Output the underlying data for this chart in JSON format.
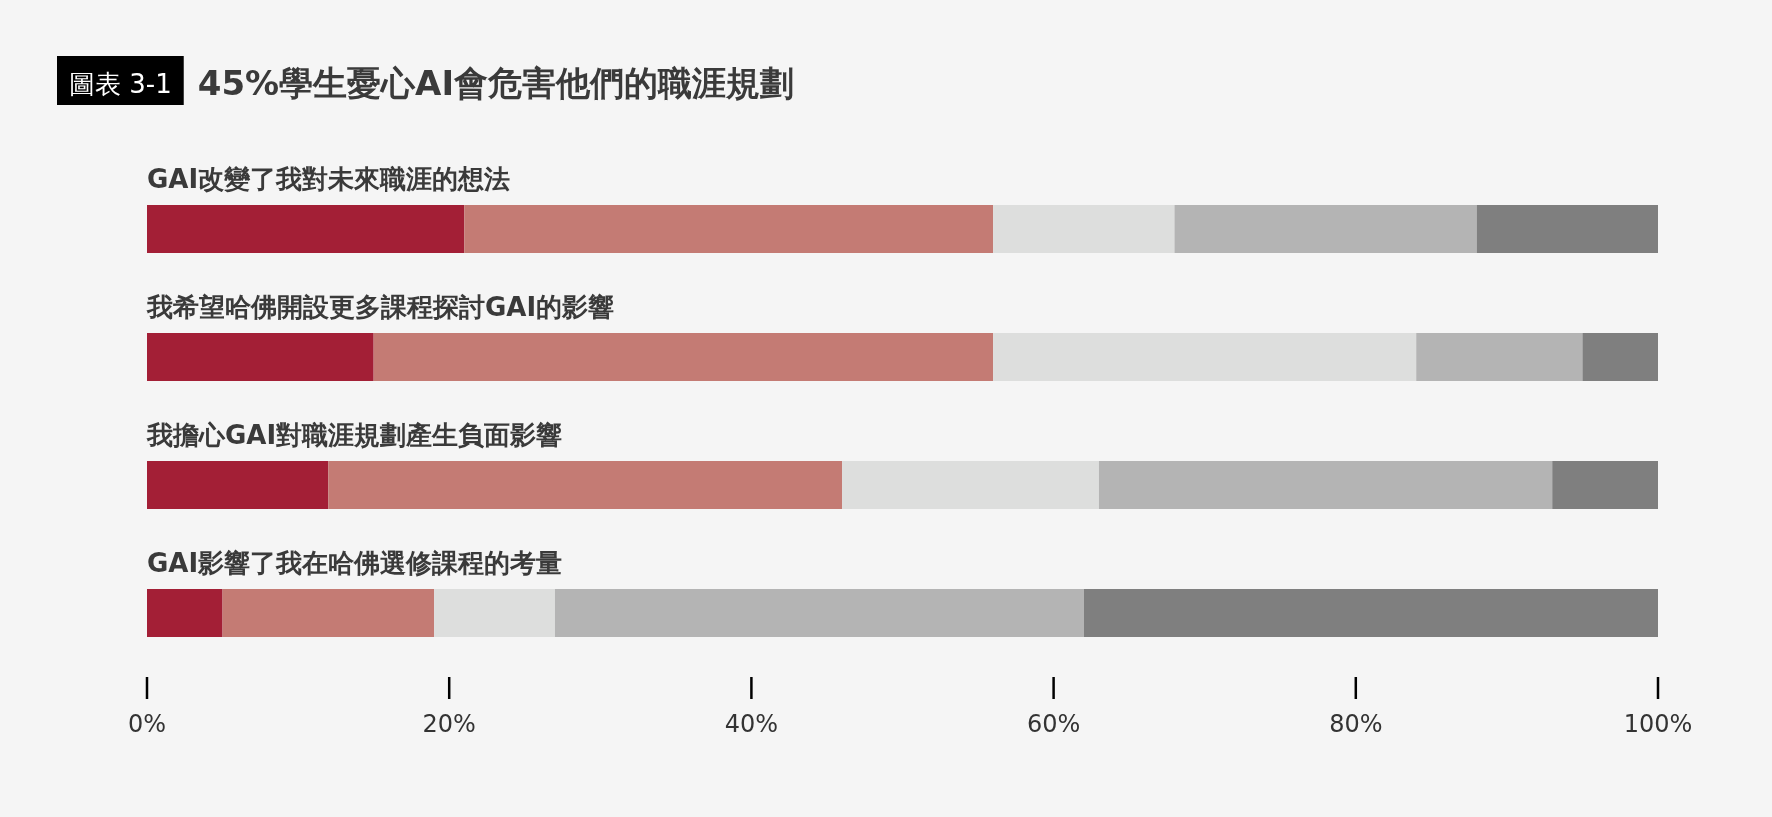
{
  "chart_data": {
    "type": "bar",
    "orientation": "horizontal",
    "stacked": true,
    "title": "45%學生憂心AI會危害他們的職涯規劃",
    "annotations": [
      "圖表 3-1"
    ],
    "categories": [
      "GAI改變了我對未來職涯的想法",
      "我希望哈佛開設更多課程探討GAI的影響",
      "我擔心GAI對職涯規劃產生負面影響",
      "GAI影響了我在哈佛選修課程的考量"
    ],
    "series": [
      {
        "color": "#a31f36",
        "values": [
          21,
          15,
          12,
          5
        ]
      },
      {
        "color": "#c47b74",
        "values": [
          35,
          41,
          34,
          14
        ]
      },
      {
        "color": "#dddedd",
        "values": [
          12,
          28,
          17,
          8
        ]
      },
      {
        "color": "#b4b4b4",
        "values": [
          20,
          11,
          30,
          35
        ]
      },
      {
        "color": "#7f7f7f",
        "values": [
          12,
          5,
          7,
          38
        ]
      }
    ],
    "xlim": [
      0,
      100
    ],
    "xticks": [
      {
        "value": 0,
        "label": "0%"
      },
      {
        "value": 20,
        "label": "20%"
      },
      {
        "value": 40,
        "label": "40%"
      },
      {
        "value": 60,
        "label": "60%"
      },
      {
        "value": 80,
        "label": "80%"
      },
      {
        "value": 100,
        "label": "100%"
      }
    ],
    "grid": false
  }
}
